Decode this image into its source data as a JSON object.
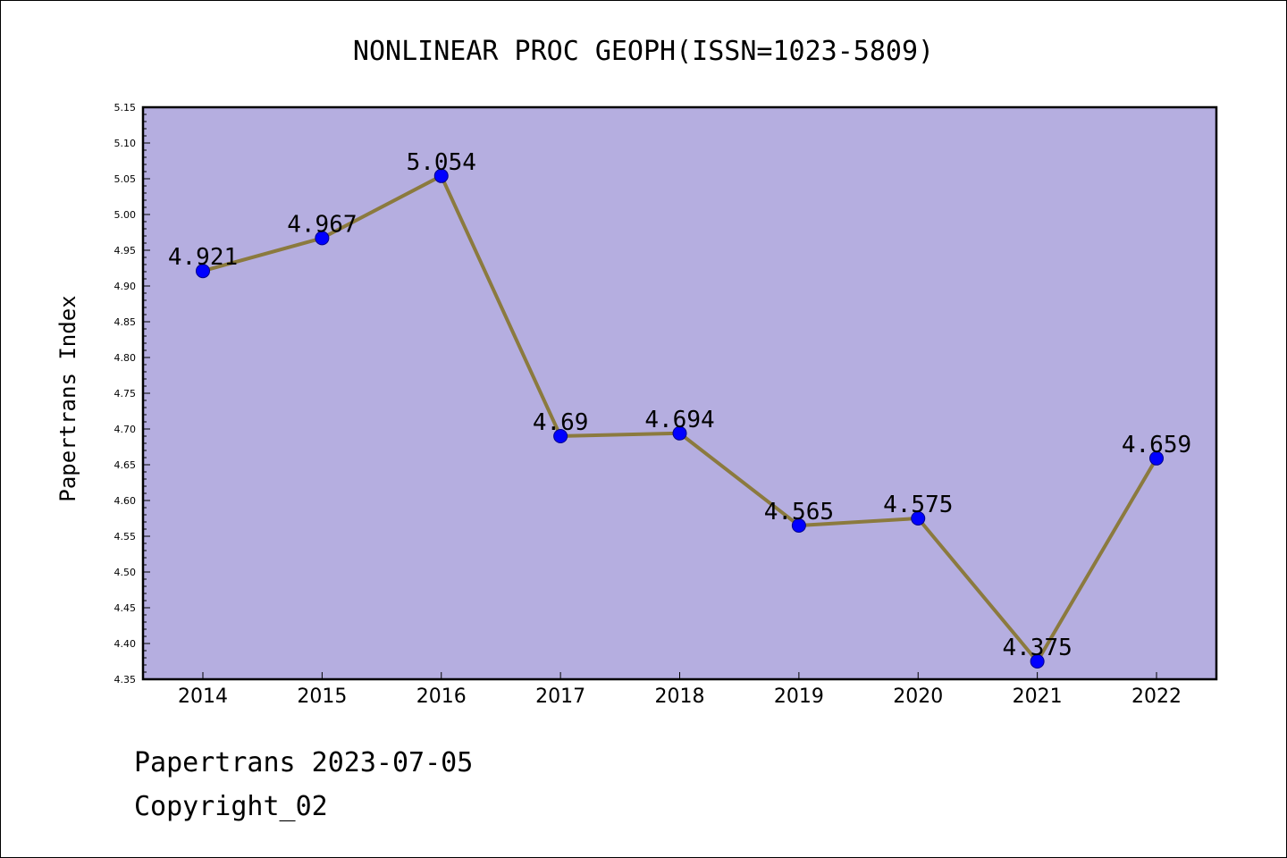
{
  "chart_data": {
    "type": "line",
    "title": "NONLINEAR PROC GEOPH(ISSN=1023-5809)",
    "xlabel": "",
    "ylabel": "Papertrans Index",
    "categories": [
      "2014",
      "2015",
      "2016",
      "2017",
      "2018",
      "2019",
      "2020",
      "2021",
      "2022"
    ],
    "values": [
      4.921,
      4.967,
      5.054,
      4.69,
      4.694,
      4.565,
      4.575,
      4.375,
      4.659
    ],
    "value_labels": [
      "4.921",
      "4.967",
      "5.054",
      "4.69",
      "4.694",
      "4.565",
      "4.575",
      "4.375",
      "4.659"
    ],
    "ylim": [
      4.35,
      5.15
    ],
    "yticks": [
      "4.35",
      "4.40",
      "4.45",
      "4.50",
      "4.55",
      "4.60",
      "4.65",
      "4.70",
      "4.75",
      "4.80",
      "4.85",
      "4.90",
      "4.95",
      "5.00",
      "5.05",
      "5.10",
      "5.15"
    ],
    "grid": false,
    "legend": "none",
    "colors": {
      "plot_background": "#b5aee0",
      "line": "#8b7a3e",
      "marker_fill": "#0000ff",
      "marker_stroke": "#00008b",
      "axes": "#000000"
    }
  },
  "footer": {
    "line1": "Papertrans 2023-07-05",
    "line2": "Copyright_02"
  }
}
